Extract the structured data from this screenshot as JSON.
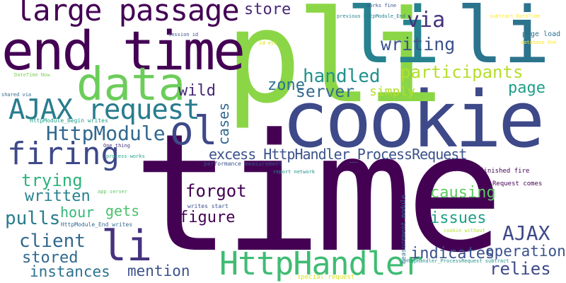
{
  "colors": {
    "background": "#ffffff",
    "palette": [
      "#440154",
      "#482878",
      "#3e4989",
      "#31688e",
      "#26828e",
      "#1f9e89",
      "#35b779",
      "#6ece58",
      "#b5de2b",
      "#fde725"
    ]
  },
  "words": [
    {
      "text": "time",
      "color": "#440154"
    },
    {
      "text": "cookie",
      "color": "#3e4989"
    },
    {
      "text": "pli",
      "color": "#8bd646"
    },
    {
      "text": "li",
      "color": "#26828e"
    },
    {
      "text": "li",
      "color": "#2c738e"
    },
    {
      "text": "end time",
      "color": "#440154"
    },
    {
      "text": "data",
      "color": "#6ccd5a"
    },
    {
      "text": "large passage",
      "color": "#440154"
    },
    {
      "text": "AJAX request",
      "color": "#287c8e"
    },
    {
      "text": "firing",
      "color": "#3e4989"
    },
    {
      "text": "ol",
      "color": "#3e4989"
    },
    {
      "text": "HttpModule",
      "color": "#31688e"
    },
    {
      "text": "HttpHandler",
      "color": "#3fbc73"
    },
    {
      "text": "li",
      "color": "#46327e"
    },
    {
      "text": "excess HttpHandler_ProcessRequest",
      "color": "#3b528b"
    },
    {
      "text": "store",
      "color": "#482878"
    },
    {
      "text": "via",
      "color": "#46327e"
    },
    {
      "text": "writing",
      "color": "#3b528b"
    },
    {
      "text": "participants",
      "color": "#b5de2b"
    },
    {
      "text": "handled",
      "color": "#21918c"
    },
    {
      "text": "zone",
      "color": "#2c728e"
    },
    {
      "text": "server",
      "color": "#31688e"
    },
    {
      "text": "simply",
      "color": "#b5de2b"
    },
    {
      "text": "page",
      "color": "#1f9e89"
    },
    {
      "text": "wild",
      "color": "#482878"
    },
    {
      "text": "cases",
      "color": "#31688e"
    },
    {
      "text": "forgot",
      "color": "#440154"
    },
    {
      "text": "trying",
      "color": "#2db27d"
    },
    {
      "text": "written",
      "color": "#26828e"
    },
    {
      "text": "hour",
      "color": "#35b779"
    },
    {
      "text": "gets",
      "color": "#4ac16d"
    },
    {
      "text": "figure",
      "color": "#440154"
    },
    {
      "text": "pulls",
      "color": "#287c8e"
    },
    {
      "text": "client",
      "color": "#31688e"
    },
    {
      "text": "stored",
      "color": "#31688e"
    },
    {
      "text": "instances",
      "color": "#2c728e"
    },
    {
      "text": "mention",
      "color": "#3b528b"
    },
    {
      "text": "causing",
      "color": "#5ec962"
    },
    {
      "text": "issues",
      "color": "#1f9e89"
    },
    {
      "text": "AJAX",
      "color": "#3e4989"
    },
    {
      "text": "operation",
      "color": "#3b528b"
    },
    {
      "text": "indicates",
      "color": "#3b528b"
    },
    {
      "text": "relies",
      "color": "#3e4989"
    },
    {
      "text": "page load",
      "color": "#2c728e"
    },
    {
      "text": "works fine",
      "color": "#3b528b"
    },
    {
      "text": "previous HttpModule_End",
      "color": "#26828e"
    },
    {
      "text": "subtract DateTime",
      "color": "#fde725"
    },
    {
      "text": "session id",
      "color": "#3b528b"
    },
    {
      "text": "id etc",
      "color": "#d8e219"
    },
    {
      "text": "database One",
      "color": "#fde725"
    },
    {
      "text": "DateTime Now",
      "color": "#7ad151"
    },
    {
      "text": "shared via",
      "color": "#31688e"
    },
    {
      "text": "HttpModule_Begin writes",
      "color": "#1f9e89"
    },
    {
      "text": "One thing",
      "color": "#46327e"
    },
    {
      "text": "process works",
      "color": "#20a386"
    },
    {
      "text": "performance measurement",
      "color": "#3b528b"
    },
    {
      "text": "report network",
      "color": "#21918c"
    },
    {
      "text": "finished fire",
      "color": "#440154"
    },
    {
      "text": "Request comes",
      "color": "#440154"
    },
    {
      "text": "app server",
      "color": "#5ec962"
    },
    {
      "text": "measurement module",
      "color": "#2c728e"
    },
    {
      "text": "writes start",
      "color": "#3b528b"
    },
    {
      "text": "HttpModule_End writes",
      "color": "#31688e"
    },
    {
      "text": "cookie without",
      "color": "#b5de2b"
    },
    {
      "text": "HttpHandler_ProcessRequest subtract",
      "color": "#21918c"
    },
    {
      "text": "special request",
      "color": "#d8e219"
    }
  ]
}
